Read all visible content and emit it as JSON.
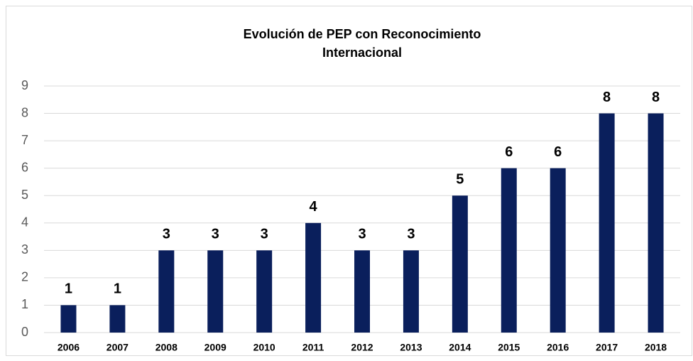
{
  "chart_data": {
    "type": "bar",
    "title": [
      "Evolución de PEP con Reconocimiento",
      "Internacional"
    ],
    "categories": [
      "2006",
      "2007",
      "2008",
      "2009",
      "2010",
      "2011",
      "2012",
      "2013",
      "2014",
      "2015",
      "2016",
      "2017",
      "2018"
    ],
    "values": [
      1,
      1,
      3,
      3,
      3,
      4,
      3,
      3,
      5,
      6,
      6,
      8,
      8
    ],
    "color": "#0a1f5c",
    "ylim": [
      0,
      9
    ],
    "yticks": [
      0,
      1,
      2,
      3,
      4,
      5,
      6,
      7,
      8,
      9
    ],
    "grid": true
  }
}
